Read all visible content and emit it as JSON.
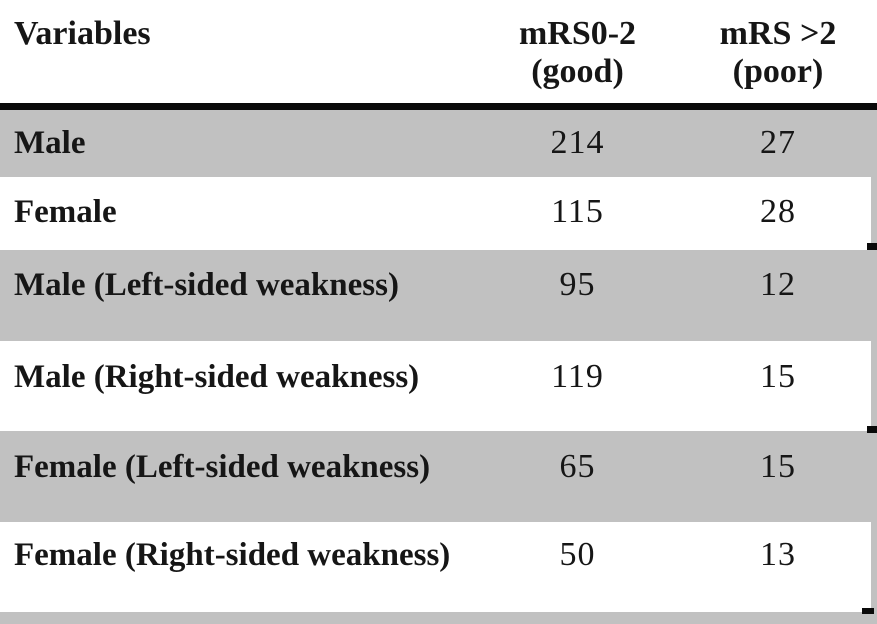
{
  "table": {
    "header": {
      "variables_label": "Variables",
      "good_col_line1": "mRS0-2",
      "good_col_line2": "(good)",
      "poor_col_line1": "mRS >2",
      "poor_col_line2": "(poor)"
    },
    "rows": [
      {
        "label": "Male",
        "good": "214",
        "poor": "27"
      },
      {
        "label": "Female",
        "good": "115",
        "poor": "28"
      },
      {
        "label": "Male (Left-sided weakness)",
        "good": "95",
        "poor": "12"
      },
      {
        "label": "Male (Right-sided weakness)",
        "good": "119",
        "poor": "15"
      },
      {
        "label": "Female (Left-sided weakness)",
        "good": "65",
        "poor": "15"
      },
      {
        "label": "Female (Right-sided weakness)",
        "good": "50",
        "poor": "13"
      }
    ]
  },
  "colors": {
    "background": "#ffffff",
    "row_shade": "#c1c1c1",
    "header_rule": "#0a0a0a",
    "text": "#161616"
  }
}
